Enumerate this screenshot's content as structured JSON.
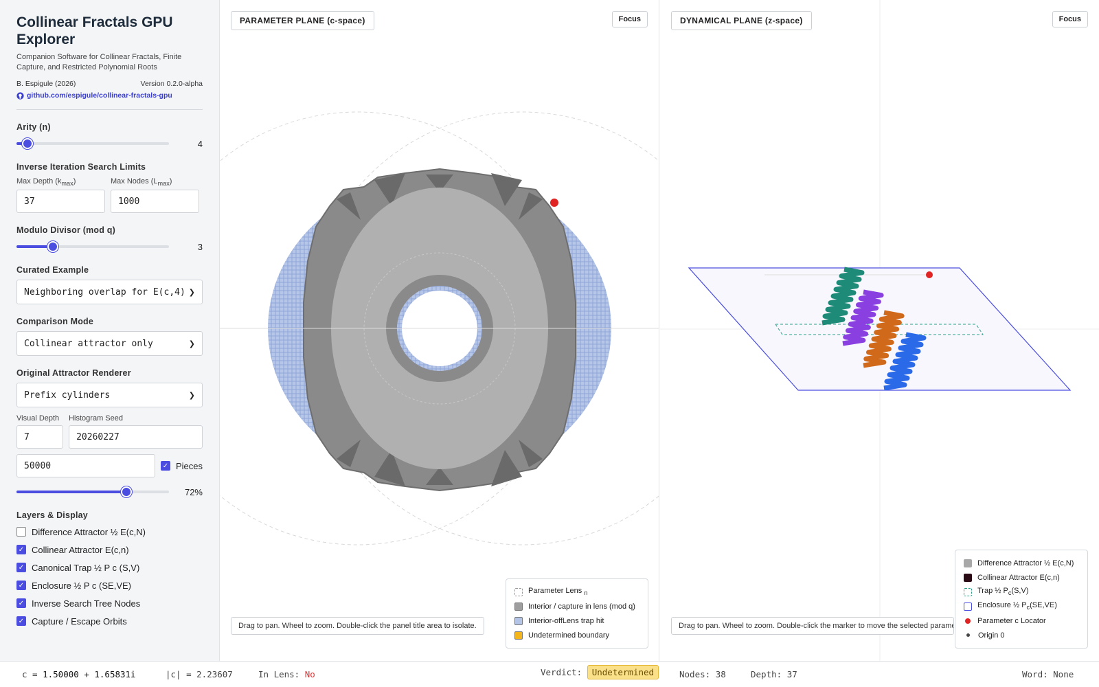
{
  "app": {
    "title": "Collinear Fractals GPU Explorer",
    "subtitle": "Companion Software for Collinear Fractals, Finite Capture, and Restricted Polynomial Roots",
    "author": "B. Espigule (2026)",
    "version": "Version 0.2.0-alpha",
    "repo": "github.com/espigule/collinear-fractals-gpu"
  },
  "controls": {
    "arity": {
      "label": "Arity (n)",
      "value": "4",
      "fraction": 0.07
    },
    "search_limits": {
      "label": "Inverse Iteration Search Limits",
      "max_depth_label": "Max Depth (k",
      "max_depth_sub": "max",
      "max_depth_value": "37",
      "max_nodes_label": "Max Nodes (L",
      "max_nodes_sub": "max",
      "max_nodes_value": "1000"
    },
    "modulo": {
      "label": "Modulo Divisor (mod q)",
      "value": "3",
      "fraction": 0.24
    },
    "curated": {
      "label": "Curated Example",
      "value": "Neighboring overlap for E(c,4)"
    },
    "comparison": {
      "label": "Comparison Mode",
      "value": "Collinear attractor only"
    },
    "renderer": {
      "label": "Original Attractor Renderer",
      "value": "Prefix cylinders"
    },
    "visual_depth": {
      "label": "Visual Depth",
      "value": "7"
    },
    "histogram_seed": {
      "label": "Histogram Seed",
      "value": "20260227"
    },
    "points": {
      "value": "50000"
    },
    "pieces": {
      "label": "Pieces",
      "checked": true
    },
    "opacity": {
      "value": "72%",
      "fraction": 0.72
    },
    "layers": {
      "label": "Layers & Display",
      "items": [
        {
          "label": "Difference Attractor ½ E(c,N)",
          "checked": false
        },
        {
          "label": "Collinear Attractor E(c,n)",
          "checked": true
        },
        {
          "label": "Canonical Trap ½ P  c  (S,V)",
          "checked": true
        },
        {
          "label": "Enclosure ½ P  c  (SE,VE)",
          "checked": true
        },
        {
          "label": "Inverse Search Tree Nodes",
          "checked": true
        },
        {
          "label": "Capture / Escape Orbits",
          "checked": true
        }
      ]
    }
  },
  "param_panel": {
    "title": "PARAMETER PLANE (c-space)",
    "focus": "Focus",
    "hint": "Drag to pan. Wheel to zoom. Double-click the panel title area to isolate.",
    "legend": [
      {
        "label": "Parameter Lens ",
        "sub": "n",
        "color": "#ffffff",
        "style": "dashed"
      },
      {
        "label": "Interior / capture in lens (mod q)",
        "color": "#9e9e9e",
        "style": "solid"
      },
      {
        "label": "Interior-offLens trap hit",
        "color": "#b3c4e6",
        "style": "solid"
      },
      {
        "label": "Undetermined boundary",
        "color": "#f3b51a",
        "style": "solid"
      }
    ]
  },
  "dyn_panel": {
    "title": "DYNAMICAL PLANE (z-space)",
    "focus": "Focus",
    "hint": "Drag to pan. Wheel to zoom. Double-click the marker to move the selected parameter.",
    "legend": [
      {
        "label": "Difference Attractor ½ E(c,N)",
        "color": "#a8a8a8",
        "kind": "swatch"
      },
      {
        "label": "Collinear Attractor E(c,n)",
        "color": "#2a0a14",
        "kind": "swatch"
      },
      {
        "label": "Trap ½ P",
        "sub": "c",
        "tail": "(S,V)",
        "color": "#2aa08a",
        "kind": "dashed"
      },
      {
        "label": "Enclosure ½ P",
        "sub": "c",
        "tail": "(SE,VE)",
        "color": "#4a4de0",
        "kind": "outline"
      },
      {
        "label": "Parameter c Locator",
        "color": "#e02424",
        "kind": "dot"
      },
      {
        "label": "Origin 0",
        "color": "#444444",
        "kind": "smalldot"
      }
    ]
  },
  "status": {
    "c_label": "c = ",
    "c_value": "1.50000 + 1.65831i",
    "abs_label": "|c| = ",
    "abs_value": "2.23607",
    "lens_label": "In Lens: ",
    "lens_value": "No",
    "verdict_label": "Verdict: ",
    "verdict_value": "Undetermined",
    "nodes_label": "Nodes: ",
    "nodes_value": "38",
    "depth_label": "Depth: ",
    "depth_value": "37",
    "word_label": "Word: ",
    "word_value": "None"
  },
  "colors": {
    "accent": "#4a4de0",
    "trap": "#2aa08a",
    "locator": "#e02424",
    "fractal_teal": "#1e8a78",
    "fractal_purple": "#8a3fe0",
    "fractal_orange": "#d06a1a",
    "fractal_blue": "#2a6ae8"
  }
}
